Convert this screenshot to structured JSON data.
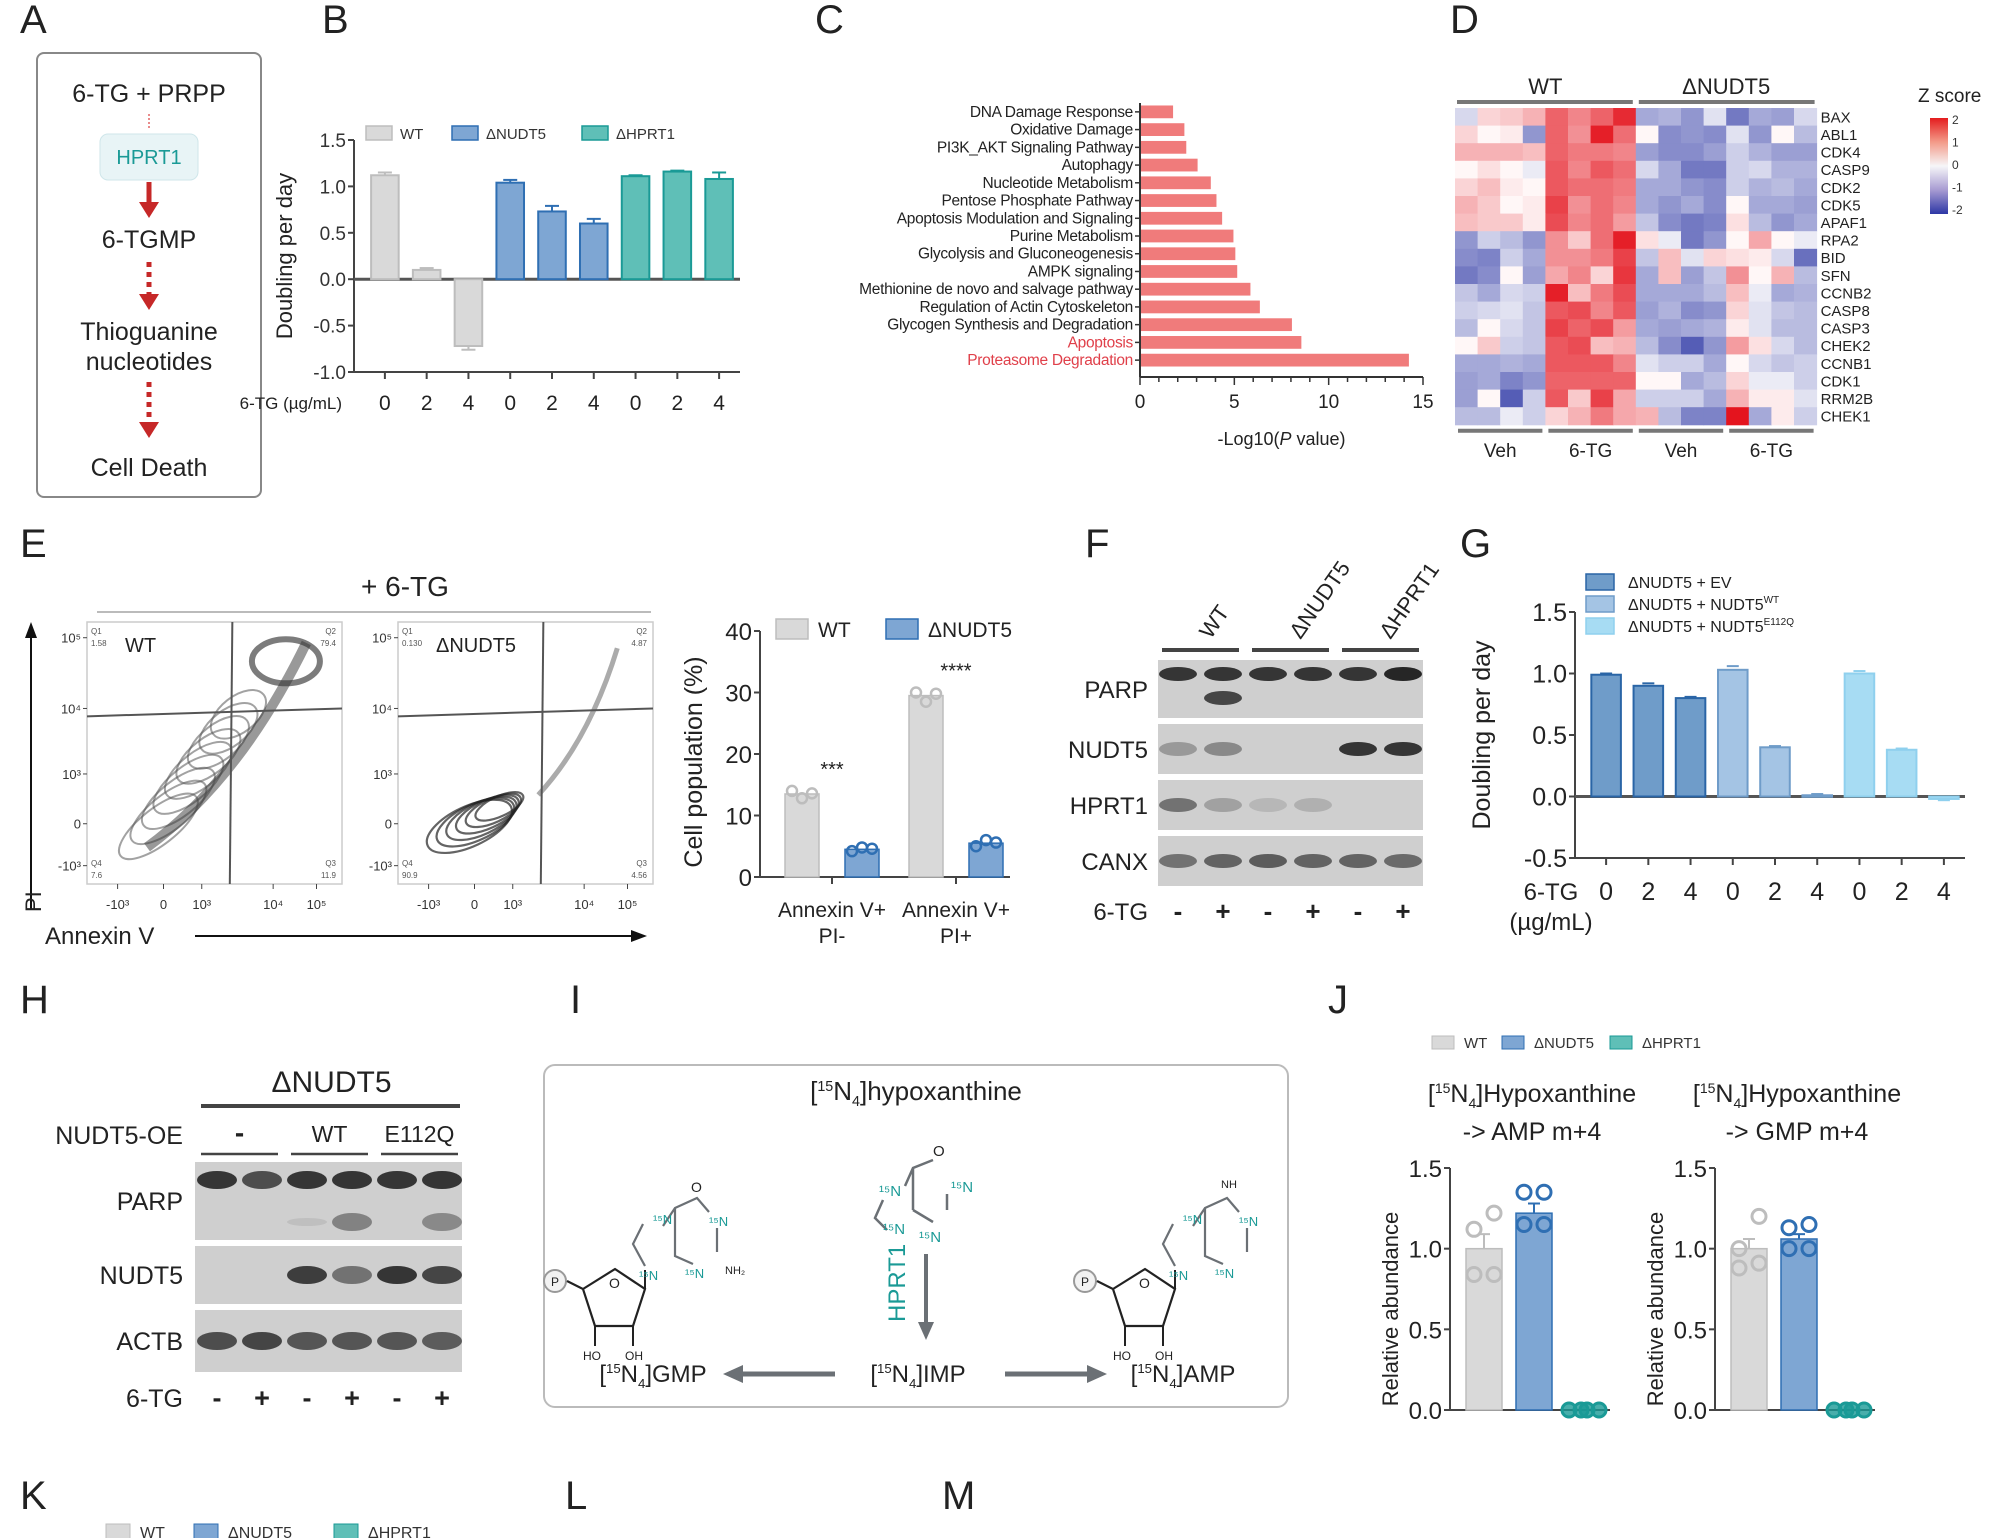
{
  "panel_labels": [
    "A",
    "B",
    "C",
    "D",
    "E",
    "F",
    "G",
    "H",
    "I",
    "J",
    "K",
    "L",
    "M"
  ],
  "panelA": {
    "steps": [
      "6-TG + PRPP",
      "6-TGMP",
      "Thioguanine",
      "nucleotides",
      "Cell Death"
    ],
    "enzyme": "HPRT1",
    "colors": {
      "arrow": "#c62828",
      "enzyme": "#1a9a96",
      "enzyme_bg": "#e8f4f6"
    }
  },
  "chart_data": [
    {
      "id": "B",
      "type": "bar",
      "ylabel": "Doubling per day",
      "xlabel_prefix": "6-TG (µg/mL)",
      "ylim": [
        -1.0,
        1.5
      ],
      "yticks": [
        "1.5",
        "1.0",
        "0.5",
        "0.0",
        "-0.5",
        "-1.0"
      ],
      "categories": [
        "0",
        "2",
        "4",
        "0",
        "2",
        "4",
        "0",
        "2",
        "4"
      ],
      "series": [
        {
          "name": "WT",
          "color": "#d9d9d9",
          "stroke": "#bdbdbd",
          "values": [
            1.12,
            0.1,
            -0.72
          ],
          "errors": [
            0.03,
            0.02,
            0.04
          ]
        },
        {
          "name": "ΔNUDT5",
          "color": "#7ea6d3",
          "stroke": "#2f6fb3",
          "values": [
            1.04,
            0.73,
            0.6
          ],
          "errors": [
            0.03,
            0.06,
            0.05
          ]
        },
        {
          "name": "ΔHPRT1",
          "color": "#5fbfb7",
          "stroke": "#1a9a96",
          "values": [
            1.11,
            1.16,
            1.08
          ],
          "errors": [
            0.01,
            0.01,
            0.07
          ]
        }
      ],
      "legend": "top"
    },
    {
      "id": "C",
      "type": "bar",
      "orientation": "horizontal",
      "xlabel": "-Log10(P value)",
      "xlim": [
        0,
        15
      ],
      "xticks": [
        "0",
        "5",
        "10",
        "15"
      ],
      "categories": [
        "DNA Damage Response",
        "Oxidative Damage",
        "PI3K_AKT Signaling Pathway",
        "Autophagy",
        "Nucleotide Metabolism",
        "Pentose Phosphate Pathway",
        "Apoptosis Modulation and Signaling",
        "Purine Metabolism",
        "Glycolysis and Gluconeogenesis",
        "AMPK signaling",
        "Methionine de novo and salvage pathway",
        "Regulation of Actin Cytoskeleton",
        "Glycogen Synthesis and Degradation",
        "Apoptosis",
        "Proteasome Degradation"
      ],
      "highlighted": [
        "Apoptosis",
        "Proteasome Degradation"
      ],
      "values": [
        1.7,
        2.3,
        2.4,
        3.0,
        3.7,
        4.0,
        4.3,
        4.9,
        5.0,
        5.1,
        5.8,
        6.3,
        8.0,
        8.5,
        14.2
      ],
      "color": "#f07b7b",
      "highlight_color": "#e0404a"
    },
    {
      "id": "D",
      "type": "heatmap",
      "group_labels": [
        "WT",
        "ΔNUDT5"
      ],
      "condition_labels": [
        "Veh",
        "6-TG",
        "Veh",
        "6-TG"
      ],
      "legend_title": "Z score",
      "legend_ticks": [
        "2",
        "1",
        "0",
        "-1",
        "-2"
      ],
      "zlim": [
        -2,
        2
      ],
      "rows": [
        "BAX",
        "ABL1",
        "CDK4",
        "CASP9",
        "CDK2",
        "CDK5",
        "APAF1",
        "RPA2",
        "BID",
        "SFN",
        "CCNB2",
        "CASP8",
        "CASP3",
        "CHEK2",
        "CCNB1",
        "CDK1",
        "RRM2B",
        "CHEK1"
      ],
      "values": [
        [
          -0.3,
          0.3,
          0.4,
          0.6,
          1.3,
          1.0,
          1.3,
          1.8,
          -0.8,
          -0.7,
          -1.0,
          -0.2,
          -1.3,
          -0.8,
          -0.9,
          -0.3
        ],
        [
          0.3,
          0.0,
          0.1,
          -1.0,
          1.3,
          0.9,
          1.9,
          1.2,
          0.0,
          -1.1,
          -1.0,
          -1.1,
          -0.2,
          -1.0,
          0.0,
          -0.6
        ],
        [
          0.6,
          0.6,
          0.6,
          0.5,
          1.3,
          1.1,
          1.1,
          1.0,
          -0.9,
          -1.1,
          -1.1,
          -0.9,
          -0.4,
          -0.7,
          -0.9,
          -0.9
        ],
        [
          0.0,
          0.2,
          0.0,
          -0.1,
          1.4,
          1.0,
          1.4,
          1.2,
          -0.3,
          -0.8,
          -1.3,
          -1.3,
          -0.4,
          -0.3,
          -0.7,
          -0.7
        ],
        [
          0.3,
          0.5,
          0.1,
          0.0,
          1.4,
          1.2,
          1.2,
          1.1,
          -0.8,
          -0.8,
          -1.0,
          -1.1,
          -0.4,
          -0.7,
          -0.6,
          -0.8
        ],
        [
          0.6,
          0.4,
          0.0,
          0.1,
          1.6,
          0.9,
          1.2,
          1.0,
          -0.8,
          -1.0,
          -0.8,
          -1.1,
          0.0,
          -0.8,
          -0.8,
          -0.9
        ],
        [
          0.5,
          0.4,
          0.4,
          0.1,
          1.5,
          1.0,
          1.2,
          0.8,
          -0.5,
          -1.1,
          -1.3,
          -1.2,
          0.2,
          -0.6,
          -1.0,
          -0.8
        ],
        [
          -1.0,
          -0.4,
          -0.6,
          -1.0,
          0.9,
          0.4,
          1.2,
          1.9,
          0.2,
          -0.1,
          -1.3,
          -1.0,
          0.0,
          0.7,
          0.0,
          -0.1
        ],
        [
          -1.1,
          -1.2,
          -0.4,
          -0.8,
          0.9,
          0.9,
          1.1,
          1.6,
          -0.5,
          0.5,
          -0.2,
          0.3,
          0.2,
          0.1,
          -0.3,
          -1.4
        ],
        [
          -1.3,
          -1.1,
          0.0,
          -0.9,
          0.7,
          1.0,
          0.3,
          1.7,
          -0.8,
          0.5,
          -0.9,
          -0.5,
          0.9,
          0.0,
          0.6,
          -0.6
        ],
        [
          -0.5,
          -0.8,
          -0.3,
          -0.4,
          1.9,
          0.5,
          1.1,
          1.5,
          -0.8,
          -0.8,
          -0.8,
          -0.6,
          0.5,
          -0.1,
          -0.8,
          -0.7
        ],
        [
          -0.4,
          -0.3,
          -0.2,
          -0.5,
          1.4,
          1.5,
          1.0,
          1.4,
          -0.9,
          -0.7,
          -1.1,
          -1.0,
          0.3,
          -0.2,
          -0.5,
          -0.6
        ],
        [
          -0.6,
          0.0,
          -0.3,
          -0.5,
          1.6,
          1.3,
          1.5,
          0.8,
          -0.8,
          -0.9,
          -0.8,
          -0.7,
          0.1,
          -0.2,
          -0.6,
          -0.6
        ],
        [
          0.0,
          0.4,
          -0.4,
          -0.5,
          1.4,
          1.5,
          0.5,
          0.6,
          -0.6,
          -1.1,
          -1.6,
          -1.0,
          0.8,
          0.2,
          -0.3,
          -0.6
        ],
        [
          -0.8,
          -0.8,
          -0.7,
          -0.8,
          1.4,
          1.4,
          1.4,
          1.0,
          -0.2,
          -0.4,
          -0.4,
          -0.8,
          0.0,
          -0.3,
          -0.5,
          -0.4
        ],
        [
          -0.9,
          -0.8,
          -1.2,
          -1.0,
          1.3,
          1.3,
          1.3,
          1.3,
          0.0,
          0.0,
          -0.8,
          -0.6,
          0.3,
          -0.1,
          -0.1,
          -0.4
        ],
        [
          -0.9,
          0.0,
          -1.6,
          -0.4,
          1.4,
          0.4,
          1.6,
          0.7,
          -0.4,
          -0.4,
          -0.4,
          -0.8,
          0.6,
          0.1,
          0.1,
          -0.2
        ],
        [
          -0.6,
          -0.6,
          -0.1,
          -0.4,
          0.3,
          0.6,
          1.1,
          0.7,
          0.6,
          -0.6,
          -1.2,
          -1.2,
          2.0,
          -0.8,
          0.1,
          -0.4
        ]
      ]
    },
    {
      "id": "E-bar",
      "type": "bar",
      "ylabel": "Cell population (%)",
      "ylim": [
        0,
        40
      ],
      "yticks": [
        "0",
        "10",
        "20",
        "30",
        "40"
      ],
      "categories": [
        "Annexin V+\nPI-",
        "Annexin V+\nPI+"
      ],
      "category_lines": [
        [
          "Annexin V+",
          "PI-"
        ],
        [
          "Annexin V+",
          "PI+"
        ]
      ],
      "series": [
        {
          "name": "WT",
          "color": "#d9d9d9",
          "stroke": "#bdbdbd",
          "values": [
            13.5,
            29.5
          ],
          "points": [
            [
              14.0,
              12.8,
              13.6
            ],
            [
              30.0,
              28.5,
              29.8
            ]
          ]
        },
        {
          "name": "ΔNUDT5",
          "color": "#7ea6d3",
          "stroke": "#2f6fb3",
          "values": [
            4.5,
            5.5
          ],
          "points": [
            [
              4.2,
              4.8,
              4.6
            ],
            [
              5.0,
              6.0,
              5.6
            ]
          ]
        }
      ],
      "significance": [
        "***",
        "****"
      ],
      "legend": "top"
    },
    {
      "id": "G",
      "type": "bar",
      "ylabel": "Doubling per day",
      "xlabel_lines": [
        "6-TG",
        "(µg/mL)"
      ],
      "ylim": [
        -0.5,
        1.5
      ],
      "yticks": [
        "1.5",
        "1.0",
        "0.5",
        "0.0",
        "-0.5"
      ],
      "categories": [
        "0",
        "2",
        "4",
        "0",
        "2",
        "4",
        "0",
        "2",
        "4"
      ],
      "series": [
        {
          "name": "ΔNUDT5 + EV",
          "sup": "",
          "color": "#6f9cc9",
          "stroke": "#2a65a6",
          "values": [
            0.99,
            0.9,
            0.8
          ],
          "errors": [
            0.01,
            0.02,
            0.01
          ]
        },
        {
          "name": "ΔNUDT5 + NUDT5",
          "sup": "WT",
          "color": "#a4c4e4",
          "stroke": "#6f9cc9",
          "values": [
            1.03,
            0.4,
            0.01
          ],
          "errors": [
            0.03,
            0.01,
            0.01
          ]
        },
        {
          "name": "ΔNUDT5 + NUDT5",
          "sup": "E112Q",
          "color": "#a7dcf3",
          "stroke": "#8fd0ee",
          "values": [
            1.0,
            0.38,
            -0.02
          ],
          "errors": [
            0.02,
            0.01,
            0.01
          ]
        }
      ],
      "legend": "top-left"
    },
    {
      "id": "J-AMP",
      "type": "bar",
      "title_lines": [
        "[15N4]Hypoxanthine",
        "-> AMP m+4"
      ],
      "ylabel": "Relative abundance",
      "ylim": [
        0,
        1.5
      ],
      "yticks": [
        "0.0",
        "0.5",
        "1.0",
        "1.5"
      ],
      "categories": [
        "WT",
        "ΔNUDT5",
        "ΔHPRT1"
      ],
      "values": [
        1.0,
        1.22,
        0.01
      ],
      "errors": [
        0.09,
        0.06,
        0.0
      ],
      "points": [
        [
          0.84,
          0.84,
          1.12,
          1.22
        ],
        [
          1.15,
          1.15,
          1.35,
          1.35
        ],
        [
          0,
          0,
          0,
          0
        ]
      ],
      "colors": [
        "#d9d9d9",
        "#7ea6d3",
        "#1a9a96"
      ]
    },
    {
      "id": "J-GMP",
      "type": "bar",
      "title_lines": [
        "[15N4]Hypoxanthine",
        "-> GMP m+4"
      ],
      "ylabel": "Relative abundance",
      "ylim": [
        0,
        1.5
      ],
      "yticks": [
        "0.0",
        "0.5",
        "1.0",
        "1.5"
      ],
      "categories": [
        "WT",
        "ΔNUDT5",
        "ΔHPRT1"
      ],
      "values": [
        1.0,
        1.06,
        0.0
      ],
      "errors": [
        0.06,
        0.03,
        0.0
      ],
      "points": [
        [
          0.88,
          0.91,
          1.0,
          1.2
        ],
        [
          1.0,
          1.0,
          1.13,
          1.15
        ],
        [
          0,
          0,
          0,
          0
        ]
      ],
      "colors": [
        "#d9d9d9",
        "#7ea6d3",
        "#1a9a96"
      ]
    }
  ],
  "panelD_header": {
    "groups": [
      "WT",
      "ΔNUDT5"
    ],
    "conditions": [
      "Veh",
      "6-TG",
      "Veh",
      "6-TG"
    ],
    "legend_title": "Z score"
  },
  "panelE": {
    "treatment": "+ 6-TG",
    "y_axis": "PI",
    "x_axis": "Annexin V",
    "plots": [
      {
        "name": "WT",
        "Q1": "1.58",
        "Q2": "79.4",
        "Q3": "11.9",
        "Q4": "7.6"
      },
      {
        "name": "ΔNUDT5",
        "Q1": "0.130",
        "Q2": "4.87",
        "Q3": "4.56",
        "Q4": "90.9"
      }
    ],
    "y_ticks": [
      "10⁵",
      "10⁴",
      "10³",
      "0",
      "-10³"
    ],
    "x_ticks": [
      "-10³",
      "0",
      "10³",
      "10⁴",
      "10⁵"
    ],
    "quadrant_names": [
      "Q1",
      "Q2",
      "Q3",
      "Q4"
    ]
  },
  "panelF": {
    "lanes": [
      "WT",
      "ΔNUDT5",
      "ΔHPRT1"
    ],
    "rows": [
      "PARP",
      "NUDT5",
      "HPRT1",
      "CANX"
    ],
    "treatment_label": "6-TG",
    "treatment": [
      "-",
      "+",
      "-",
      "+",
      "-",
      "+"
    ]
  },
  "panelH": {
    "group": "ΔNUDT5",
    "oe_label": "NUDT5-OE",
    "oe_groups": [
      "-",
      "WT",
      "E112Q"
    ],
    "rows": [
      "PARP",
      "NUDT5",
      "ACTB"
    ],
    "treatment_label": "6-TG",
    "treatment": [
      "-",
      "+",
      "-",
      "+",
      "-",
      "+"
    ]
  },
  "panelI": {
    "title": "hypoxanthine",
    "iso": "15",
    "n": "N",
    "n_sub": "4",
    "enzyme": "HPRT1",
    "products": [
      "GMP",
      "IMP",
      "AMP"
    ],
    "atom_labels": {
      "O": "O",
      "N15": "¹⁵N",
      "NH2": "NH₂",
      "NH": "NH",
      "P": "P",
      "HO": "HO",
      "OH": "OH",
      "Oring": "O"
    }
  },
  "legendJ": [
    "WT",
    "ΔNUDT5",
    "ΔHPRT1"
  ],
  "legendK": [
    "WT",
    "ΔNUDT5",
    "ΔHPRT1"
  ],
  "colors": {
    "wt": "#d9d9d9",
    "nudt5": "#7ea6d3",
    "hprt1": "#5fbfb7",
    "teal": "#1a9a96",
    "red": "#c62828"
  }
}
